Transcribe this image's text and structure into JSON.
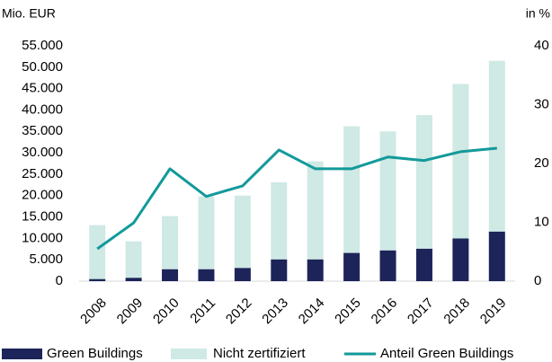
{
  "chart_data": {
    "type": "stacked_bar_line",
    "ylabel": "Mio. EUR",
    "y2label": "in %",
    "categories": [
      "2008",
      "2009",
      "2010",
      "2011",
      "2012",
      "2013",
      "2014",
      "2015",
      "2016",
      "2017",
      "2018",
      "2019"
    ],
    "series": [
      {
        "name": "Green Buildings",
        "color": "#1c2459",
        "type": "bar",
        "values": [
          500,
          800,
          2800,
          2800,
          3100,
          5100,
          5100,
          6600,
          7200,
          7600,
          10000,
          11600
        ]
      },
      {
        "name": "Nicht zertifiziert",
        "color": "#cfe9e5",
        "type": "bar",
        "values": [
          12600,
          8500,
          12400,
          17000,
          16900,
          18000,
          22900,
          29600,
          27800,
          31200,
          36100,
          39900
        ]
      },
      {
        "name": "Anteil Green Buildings",
        "color": "#13999a",
        "type": "line",
        "axis": "y2",
        "values": [
          5.5,
          9.9,
          19.1,
          14.4,
          16.2,
          22.3,
          19.1,
          19.1,
          21.1,
          20.5,
          22.0,
          22.6
        ]
      }
    ],
    "ylim": [
      0,
      55000
    ],
    "yticks": [
      0,
      {
        "value": 5000,
        "label": "5.000"
      },
      {
        "value": 10000,
        "label": "10.000"
      },
      {
        "value": 15000,
        "label": "15.000"
      },
      {
        "value": 20000,
        "label": "20.000"
      },
      {
        "value": 25000,
        "label": "25.000"
      },
      {
        "value": 30000,
        "label": "30.000"
      },
      {
        "value": 35000,
        "label": "35.000"
      },
      {
        "value": 40000,
        "label": "40.000"
      },
      {
        "value": 45000,
        "label": "45.000"
      },
      {
        "value": 50000,
        "label": "50.000"
      },
      {
        "value": 55000,
        "label": "55.000"
      }
    ],
    "y2lim": [
      0,
      40
    ],
    "y2ticks": [
      0,
      10,
      20,
      30,
      40
    ],
    "legend": "bottom"
  }
}
